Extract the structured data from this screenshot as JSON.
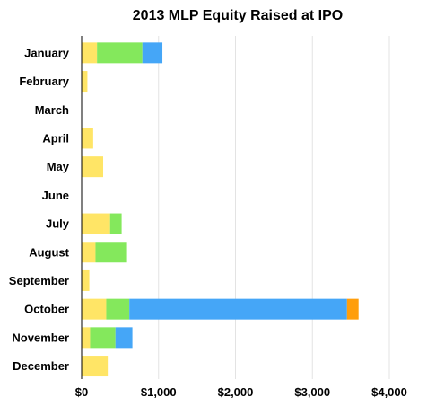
{
  "chart_data": {
    "type": "bar",
    "orientation": "horizontal",
    "stacked": true,
    "title": "2013 MLP Equity Raised at IPO",
    "xlabel": "",
    "ylabel": "",
    "categories": [
      "January",
      "February",
      "March",
      "April",
      "May",
      "June",
      "July",
      "August",
      "September",
      "October",
      "November",
      "December"
    ],
    "x_ticks": [
      "$0",
      "$1,000",
      "$2,000",
      "$3,000",
      "$4,000"
    ],
    "x_tick_values": [
      0,
      1000,
      2000,
      3000,
      4000
    ],
    "xlim": [
      0,
      4000
    ],
    "grid": "vertical",
    "legend": "none",
    "series": [
      {
        "color": "#ffe566",
        "values": [
          200,
          75,
          0,
          150,
          280,
          0,
          370,
          180,
          100,
          320,
          110,
          340
        ]
      },
      {
        "color": "#84e85c",
        "values": [
          590,
          0,
          0,
          0,
          0,
          0,
          150,
          410,
          0,
          300,
          330,
          0
        ]
      },
      {
        "color": "#45a6f7",
        "values": [
          260,
          0,
          0,
          0,
          0,
          0,
          0,
          0,
          0,
          2830,
          220,
          0
        ]
      },
      {
        "color": "#ff9e0c",
        "values": [
          0,
          0,
          0,
          0,
          0,
          0,
          0,
          0,
          0,
          150,
          0,
          0
        ]
      }
    ]
  }
}
